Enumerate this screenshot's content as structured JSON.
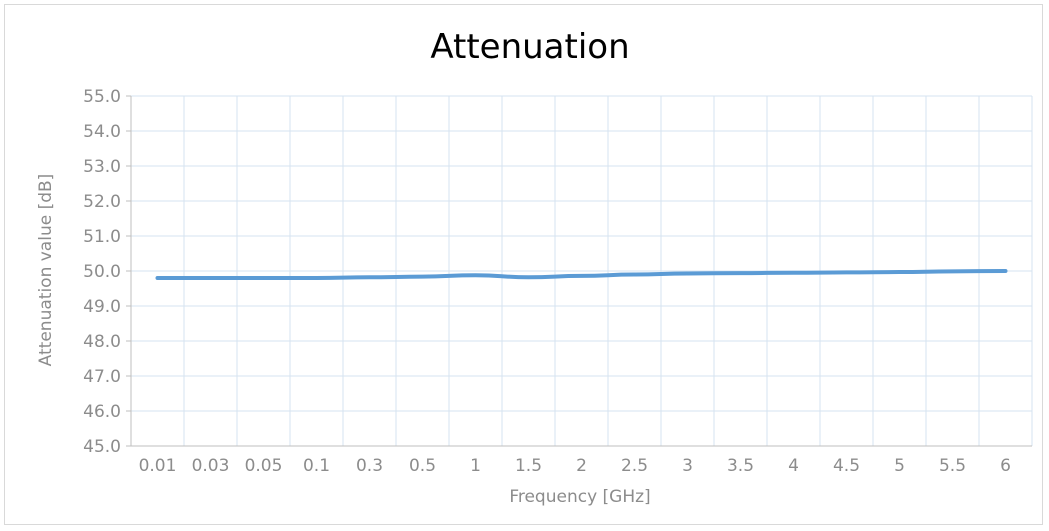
{
  "chart_data": {
    "type": "line",
    "title": "Attenuation",
    "xlabel": "Frequency [GHz]",
    "ylabel": "Attenuation value [dB]",
    "categories": [
      "0.01",
      "0.03",
      "0.05",
      "0.1",
      "0.3",
      "0.5",
      "1",
      "1.5",
      "2",
      "2.5",
      "3",
      "3.5",
      "4",
      "4.5",
      "5",
      "5.5",
      "6"
    ],
    "series": [
      {
        "values": [
          49.8,
          49.8,
          49.8,
          49.8,
          49.82,
          49.84,
          49.88,
          49.82,
          49.86,
          49.9,
          49.93,
          49.94,
          49.95,
          49.96,
          49.97,
          49.99,
          50.0
        ],
        "color": "#5b9bd5"
      }
    ],
    "ylim": [
      45.0,
      55.0
    ],
    "ytick_step": 1.0,
    "ytick_labels": [
      "45.0",
      "46.0",
      "47.0",
      "48.0",
      "49.0",
      "50.0",
      "51.0",
      "52.0",
      "53.0",
      "54.0",
      "55.0"
    ],
    "grid": true,
    "legend": "none",
    "colors": {
      "line": "#5b9bd5",
      "grid": "#d6e3f0",
      "axis": "#bfbfbf",
      "text": "#8c8c8c"
    }
  }
}
